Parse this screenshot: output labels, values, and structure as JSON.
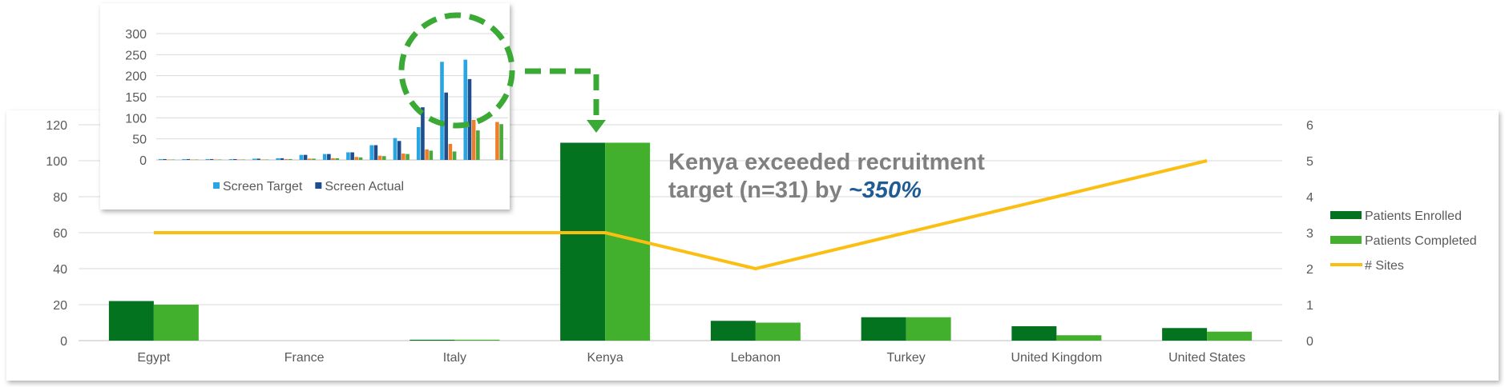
{
  "chart_data": [
    {
      "type": "bar",
      "categories": [
        "Egypt",
        "France",
        "Italy",
        "Kenya",
        "Lebanon",
        "Turkey",
        "United Kingdom",
        "United States"
      ],
      "series": [
        {
          "name": "Patients Enrolled",
          "values": [
            22,
            0,
            0.5,
            110,
            11,
            13,
            8,
            7
          ],
          "color": "#047320",
          "kind": "bar",
          "axis": "left"
        },
        {
          "name": "Patients Completed",
          "values": [
            20,
            0,
            0.5,
            110,
            10,
            13,
            3,
            5
          ],
          "color": "#42b02c",
          "kind": "bar",
          "axis": "left"
        },
        {
          "name": "# Sites",
          "values": [
            3,
            3,
            3,
            3,
            2,
            3,
            4,
            5
          ],
          "color": "#fbbf14",
          "kind": "line",
          "axis": "right"
        }
      ],
      "yticks": [
        "0",
        "20",
        "40",
        "60",
        "80",
        "100",
        "120"
      ],
      "ylim": [
        0,
        120
      ],
      "y2ticks": [
        "0",
        "1",
        "2",
        "3",
        "4",
        "5",
        "6"
      ],
      "y2lim": [
        0,
        6
      ],
      "grid": true,
      "legend_position": "right"
    },
    {
      "type": "bar",
      "series": [
        {
          "name": "Screen Target",
          "color": "#29a6e2",
          "values": [
            2,
            2,
            2,
            2,
            3,
            4,
            12,
            14,
            18,
            35,
            52,
            78,
            233,
            238
          ]
        },
        {
          "name": "Screen Actual",
          "color": "#1f4e8c",
          "values": [
            2,
            2,
            2,
            2,
            3,
            4,
            12,
            14,
            18,
            35,
            45,
            125,
            160,
            192
          ]
        },
        {
          "name": "",
          "color": "#ef7e2b",
          "values": [
            1,
            1,
            1,
            1,
            1,
            2,
            3,
            4,
            7,
            10,
            15,
            25,
            38,
            95,
            90
          ]
        },
        {
          "name": "",
          "color": "#4aa93c",
          "values": [
            1,
            1,
            1,
            1,
            1,
            2,
            3,
            4,
            6,
            9,
            14,
            22,
            20,
            70,
            85
          ]
        }
      ],
      "yticks": [
        "0",
        "50",
        "100",
        "150",
        "200",
        "250",
        "300"
      ],
      "ylim": [
        0,
        300
      ],
      "grid": true,
      "legend_position": "bottom"
    }
  ],
  "annotation": {
    "line1": "Kenya exceeded recruitment",
    "line2_prefix": "target (n=31) by ",
    "line2_highlight": "~350%"
  },
  "colors": {
    "highlight_text": "#1f5b95",
    "annotation_text": "#808080",
    "circle": "#3aa935",
    "arrow": "#3aa935"
  }
}
